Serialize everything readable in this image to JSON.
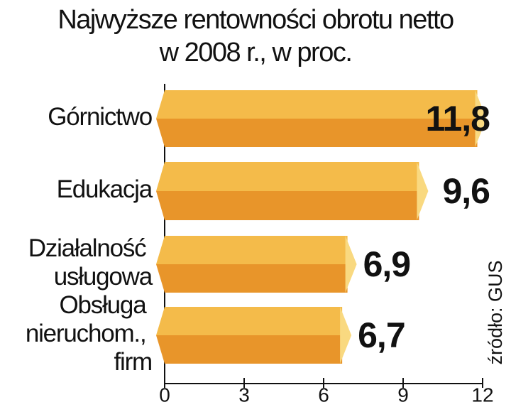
{
  "chart_data": {
    "type": "bar",
    "title": [
      "Najwyższe rentowności obrotu netto",
      "w 2008 r., w proc."
    ],
    "categories": [
      "Górnictwo",
      "Edukacja",
      "Działalność usługowa",
      "Obsługa nieruchom., firm"
    ],
    "values": [
      11.8,
      9.6,
      6.9,
      6.7
    ],
    "value_labels": [
      "11,8",
      "9,6",
      "6,9",
      "6,7"
    ],
    "xlim": [
      0,
      12
    ],
    "xticks": [
      0,
      3,
      6,
      9,
      12
    ],
    "colors": {
      "top": "#f4bb4a",
      "bottom": "#e8952a",
      "cap": "#f9d980"
    },
    "source": "źródło: GUS"
  }
}
